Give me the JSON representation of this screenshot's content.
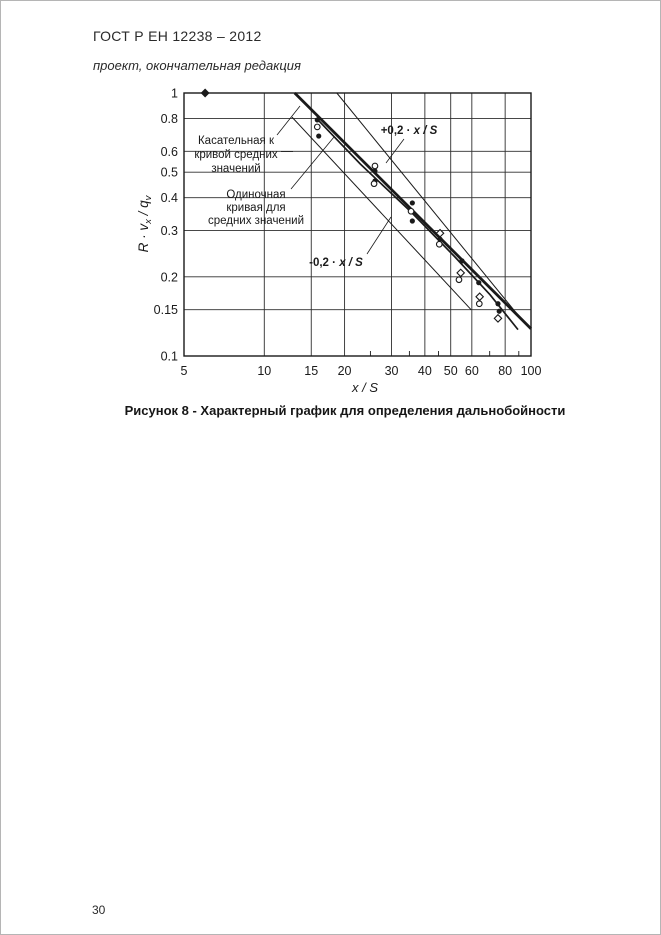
{
  "page": {
    "header_title": "ГОСТ Р ЕН 12238 – 2012",
    "header_subtitle": "проект, окончательная редакция",
    "caption": "Рисунок 8 - Характерный график для определения дальнобойности",
    "page_number": "30"
  },
  "chart_data": {
    "type": "scatter",
    "x_scale": "log",
    "y_scale": "log",
    "xlabel": "x / S",
    "ylabel_parts": {
      "pre": "R · v",
      "sub1": "x",
      "mid": " / q",
      "sub2": "v"
    },
    "xlim": [
      5,
      100
    ],
    "ylim": [
      0.1,
      1
    ],
    "x_ticks": [
      "5",
      "10",
      "15",
      "20",
      "30",
      "40",
      "50",
      "60",
      "80",
      "100"
    ],
    "x_tick_values": [
      5,
      10,
      15,
      20,
      30,
      40,
      50,
      60,
      80,
      100
    ],
    "x_minor_ticks": [
      25,
      35,
      45,
      70,
      90
    ],
    "y_ticks": [
      "1",
      "0.8",
      "0.6",
      "0.5",
      "0.4",
      "0.3",
      "0.2",
      "0.15",
      "0.1"
    ],
    "y_tick_values": [
      1,
      0.8,
      0.6,
      0.5,
      0.4,
      0.3,
      0.2,
      0.15,
      0.1
    ],
    "x_gridlines": [
      10,
      15,
      20,
      30,
      40,
      50,
      60,
      80
    ],
    "y_gridlines": [
      0.8,
      0.6,
      0.5,
      0.4,
      0.3,
      0.2,
      0.15
    ],
    "grid": true,
    "lines": [
      {
        "name": "tangent-line",
        "label": "Касательная к кривой средних значений",
        "width": 2.8,
        "points": [
          [
            13.0,
            1.0
          ],
          [
            100,
            0.127
          ]
        ]
      },
      {
        "name": "mean-curve",
        "label": "Одиночная кривая для средних значений",
        "width": 1.7,
        "points": [
          [
            15.9,
            0.79
          ],
          [
            22.9,
            0.537
          ],
          [
            35.5,
            0.353
          ],
          [
            51.9,
            0.238
          ],
          [
            70.2,
            0.171
          ],
          [
            89.4,
            0.126
          ]
        ]
      },
      {
        "name": "plus-band-line",
        "label": "+0,2 · x / S",
        "width": 1,
        "points": [
          [
            18.7,
            1.0
          ],
          [
            89.4,
            0.143
          ]
        ]
      },
      {
        "name": "minus-band-line",
        "label": "-0,2 · x / S",
        "width": 1,
        "points": [
          [
            12.7,
            0.81
          ],
          [
            59.6,
            0.15
          ]
        ]
      }
    ],
    "series": [
      {
        "name": "mean-value-points",
        "marker": "filled-circle",
        "points": [
          [
            15.8,
            0.79
          ],
          [
            16,
            0.686
          ],
          [
            26,
            0.505
          ],
          [
            26,
            0.463
          ],
          [
            35.9,
            0.382
          ],
          [
            35.9,
            0.326
          ],
          [
            45.6,
            0.278
          ],
          [
            55.1,
            0.23
          ],
          [
            63.7,
            0.19
          ],
          [
            75.2,
            0.158
          ],
          [
            76,
            0.148
          ]
        ]
      },
      {
        "name": "open-circle-points",
        "marker": "open-circle",
        "points": [
          [
            15.8,
            0.743
          ],
          [
            26,
            0.528
          ],
          [
            25.8,
            0.452
          ],
          [
            35.5,
            0.355
          ],
          [
            45.3,
            0.266
          ],
          [
            53.7,
            0.195
          ],
          [
            64,
            0.158
          ]
        ]
      },
      {
        "name": "open-diamond-points",
        "marker": "open-diamond",
        "points": [
          [
            45.6,
            0.293
          ],
          [
            54.5,
            0.207
          ],
          [
            64.2,
            0.168
          ],
          [
            75.2,
            0.139
          ]
        ]
      },
      {
        "name": "filled-diamond-points",
        "marker": "filled-diamond",
        "points": [
          [
            6.0,
            1.0
          ]
        ]
      }
    ],
    "annotations": [
      {
        "name": "tangent-label",
        "lines": [
          "Касательная к",
          "кривой средних",
          "значений"
        ]
      },
      {
        "name": "mean-curve-label",
        "lines": [
          "Одиночная",
          "кривая для",
          "средних значений"
        ]
      },
      {
        "name": "plus-band-label",
        "prefix": "+0,2 · ",
        "var": "x / S"
      },
      {
        "name": "minus-band-label",
        "prefix": "-0,2 · ",
        "var": "x / S"
      }
    ]
  }
}
